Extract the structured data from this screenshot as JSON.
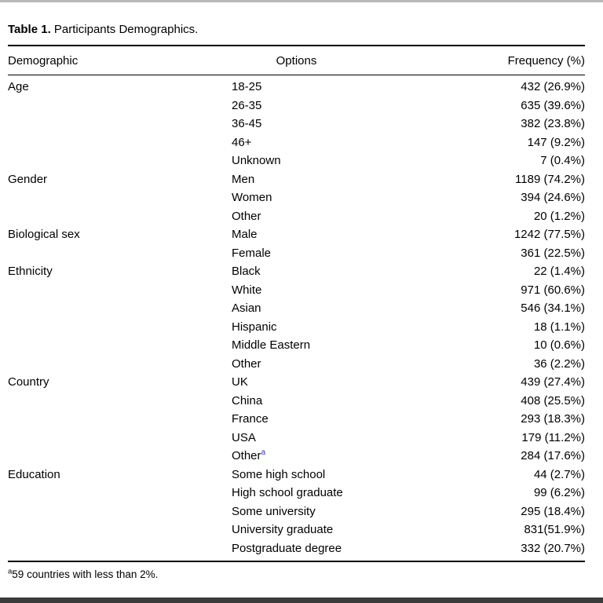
{
  "title": {
    "label": "Table 1.",
    "text": "Participants Demographics."
  },
  "columns": {
    "demographic": "Demographic",
    "options": "Options",
    "frequency": "Frequency (%)"
  },
  "groups": [
    {
      "demographic": "Age",
      "rows": [
        {
          "option": "18-25",
          "frequency": "432 (26.9%)"
        },
        {
          "option": "26-35",
          "frequency": "635 (39.6%)"
        },
        {
          "option": "36-45",
          "frequency": "382 (23.8%)"
        },
        {
          "option": "46+",
          "frequency": "147 (9.2%)"
        },
        {
          "option": "Unknown",
          "frequency": "7 (0.4%)"
        }
      ]
    },
    {
      "demographic": "Gender",
      "rows": [
        {
          "option": "Men",
          "frequency": "1189 (74.2%)"
        },
        {
          "option": "Women",
          "frequency": "394 (24.6%)"
        },
        {
          "option": "Other",
          "frequency": "20 (1.2%)"
        }
      ]
    },
    {
      "demographic": "Biological sex",
      "rows": [
        {
          "option": "Male",
          "frequency": "1242 (77.5%)"
        },
        {
          "option": "Female",
          "frequency": "361 (22.5%)"
        }
      ]
    },
    {
      "demographic": "Ethnicity",
      "rows": [
        {
          "option": "Black",
          "frequency": "22 (1.4%)"
        },
        {
          "option": "White",
          "frequency": "971 (60.6%)"
        },
        {
          "option": "Asian",
          "frequency": "546 (34.1%)"
        },
        {
          "option": "Hispanic",
          "frequency": "18 (1.1%)"
        },
        {
          "option": "Middle Eastern",
          "frequency": "10 (0.6%)"
        },
        {
          "option": "Other",
          "frequency": "36 (2.2%)"
        }
      ]
    },
    {
      "demographic": "Country",
      "rows": [
        {
          "option": "UK",
          "frequency": "439 (27.4%)"
        },
        {
          "option": "China",
          "frequency": "408 (25.5%)"
        },
        {
          "option": "France",
          "frequency": "293 (18.3%)"
        },
        {
          "option": "USA",
          "frequency": "179 (11.2%)"
        },
        {
          "option": "Other",
          "marker": "a",
          "frequency": "284 (17.6%)"
        }
      ]
    },
    {
      "demographic": "Education",
      "rows": [
        {
          "option": "Some high school",
          "frequency": "44 (2.7%)"
        },
        {
          "option": "High school graduate",
          "frequency": "99 (6.2%)"
        },
        {
          "option": "Some university",
          "frequency": "295 (18.4%)"
        },
        {
          "option": "University graduate",
          "frequency": "831(51.9%)"
        },
        {
          "option": "Postgraduate degree",
          "frequency": "332 (20.7%)"
        }
      ]
    }
  ],
  "footnote": {
    "marker": "a",
    "text": "59 countries with less than 2%."
  },
  "colors": {
    "superscript_link": "#3333cc",
    "top_bar": "#b9b9b9",
    "bottom_bar": "#3b3b3b"
  }
}
